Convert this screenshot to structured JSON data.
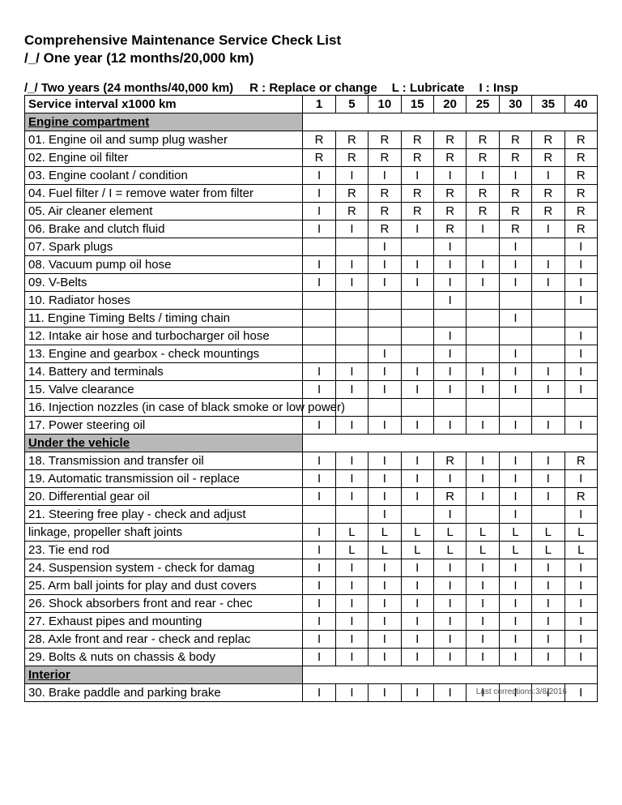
{
  "title": "Comprehensive Maintenance Service Check List",
  "subtitle": "/_/ One year (12 months/20,000 km)",
  "legend": {
    "two_years": "/_/ Two years (24 months/40,000 km)",
    "r": "R : Replace or change",
    "l": "L : Lubricate",
    "i": "I : Insp"
  },
  "header_label": "Service interval x1000 km",
  "km_columns": [
    "1",
    "5",
    "10",
    "15",
    "20",
    "25",
    "30",
    "35",
    "40"
  ],
  "sections": [
    {
      "name": "Engine compartment",
      "rows": [
        {
          "label": "01. Engine oil and sump plug washer",
          "cells": [
            "R",
            "R",
            "R",
            "R",
            "R",
            "R",
            "R",
            "R",
            "R"
          ]
        },
        {
          "label": "02. Engine oil filter",
          "cells": [
            "R",
            "R",
            "R",
            "R",
            "R",
            "R",
            "R",
            "R",
            "R"
          ]
        },
        {
          "label": "03. Engine coolant / condition",
          "cells": [
            "I",
            "I",
            "I",
            "I",
            "I",
            "I",
            "I",
            "I",
            "R"
          ]
        },
        {
          "label": "04. Fuel filter / I = remove water from filter",
          "cells": [
            "I",
            "R",
            "R",
            "R",
            "R",
            "R",
            "R",
            "R",
            "R"
          ]
        },
        {
          "label": "05. Air cleaner element",
          "cells": [
            "I",
            "R",
            "R",
            "R",
            "R",
            "R",
            "R",
            "R",
            "R"
          ]
        },
        {
          "label": "06. Brake and clutch fluid",
          "cells": [
            "I",
            "I",
            "R",
            "I",
            "R",
            "I",
            "R",
            "I",
            "R"
          ]
        },
        {
          "label": "07. Spark plugs",
          "cells": [
            "",
            "",
            "I",
            "",
            "I",
            "",
            "I",
            "",
            "I"
          ]
        },
        {
          "label": "08. Vacuum pump oil hose",
          "cells": [
            "I",
            "I",
            "I",
            "I",
            "I",
            "I",
            "I",
            "I",
            "I"
          ]
        },
        {
          "label": "09. V-Belts",
          "cells": [
            "I",
            "I",
            "I",
            "I",
            "I",
            "I",
            "I",
            "I",
            "I"
          ]
        },
        {
          "label": "10. Radiator hoses",
          "cells": [
            "",
            "",
            "",
            "",
            "I",
            "",
            "",
            "",
            "I"
          ]
        },
        {
          "label": "11. Engine Timing Belts / timing chain",
          "cells": [
            "",
            "",
            "",
            "",
            "",
            "",
            "I",
            "",
            ""
          ]
        },
        {
          "label": "12. Intake air hose and turbocharger oil hose",
          "cells": [
            "",
            "",
            "",
            "",
            "I",
            "",
            "",
            "",
            "I"
          ]
        },
        {
          "label": "13. Engine and gearbox - check mountings",
          "cells": [
            "",
            "",
            "I",
            "",
            "I",
            "",
            "I",
            "",
            "I"
          ]
        },
        {
          "label": "14. Battery and terminals",
          "cells": [
            "I",
            "I",
            "I",
            "I",
            "I",
            "I",
            "I",
            "I",
            "I"
          ]
        },
        {
          "label": "15. Valve clearance",
          "cells": [
            "I",
            "I",
            "I",
            "I",
            "I",
            "I",
            "I",
            "I",
            "I"
          ]
        },
        {
          "label": "16. Injection nozzles (in case of black smoke or low power)",
          "cells": [
            "",
            "",
            "",
            "",
            "",
            "",
            "",
            "",
            ""
          ]
        },
        {
          "label": "17. Power steering oil",
          "cells": [
            "I",
            "I",
            "I",
            "I",
            "I",
            "I",
            "I",
            "I",
            "I"
          ]
        }
      ]
    },
    {
      "name": "Under the vehicle",
      "rows": [
        {
          "label": "18. Transmission and transfer oil",
          "cells": [
            "I",
            "I",
            "I",
            "I",
            "R",
            "I",
            "I",
            "I",
            "R"
          ]
        },
        {
          "label": "19. Automatic transmission oil - replace",
          "cells": [
            "I",
            "I",
            "I",
            "I",
            "I",
            "I",
            "I",
            "I",
            "I"
          ]
        },
        {
          "label": "20. Differential gear oil",
          "cells": [
            "I",
            "I",
            "I",
            "I",
            "R",
            "I",
            "I",
            "I",
            "R"
          ]
        },
        {
          "label": "21. Steering free play - check and adjust",
          "cells": [
            "",
            "",
            "I",
            "",
            "I",
            "",
            "I",
            "",
            "I"
          ]
        },
        {
          "label": "linkage, propeller shaft joints",
          "cells": [
            "I",
            "L",
            "L",
            "L",
            "L",
            "L",
            "L",
            "L",
            "L"
          ]
        },
        {
          "label": "23. Tie end rod",
          "cells": [
            "I",
            "L",
            "L",
            "L",
            "L",
            "L",
            "L",
            "L",
            "L"
          ]
        },
        {
          "label": "24. Suspension system - check for damag",
          "cells": [
            "I",
            "I",
            "I",
            "I",
            "I",
            "I",
            "I",
            "I",
            "I"
          ]
        },
        {
          "label": "25. Arm ball joints for play and dust covers",
          "cells": [
            "I",
            "I",
            "I",
            "I",
            "I",
            "I",
            "I",
            "I",
            "I"
          ]
        },
        {
          "label": "26. Shock absorbers front and rear - chec",
          "cells": [
            "I",
            "I",
            "I",
            "I",
            "I",
            "I",
            "I",
            "I",
            "I"
          ]
        },
        {
          "label": "27. Exhaust pipes and mounting",
          "cells": [
            "I",
            "I",
            "I",
            "I",
            "I",
            "I",
            "I",
            "I",
            "I"
          ]
        },
        {
          "label": "28. Axle front and rear - check and replac",
          "cells": [
            "I",
            "I",
            "I",
            "I",
            "I",
            "I",
            "I",
            "I",
            "I"
          ]
        },
        {
          "label": "29. Bolts & nuts on chassis & body",
          "cells": [
            "I",
            "I",
            "I",
            "I",
            "I",
            "I",
            "I",
            "I",
            "I"
          ]
        }
      ]
    },
    {
      "name": "Interior",
      "rows": [
        {
          "label": "30. Brake paddle and parking brake",
          "cells": [
            "I",
            "I",
            "I",
            "I",
            "I",
            "I",
            "I",
            "I",
            "I"
          ]
        }
      ]
    }
  ],
  "footer": "Last corrections:3/8/2016"
}
